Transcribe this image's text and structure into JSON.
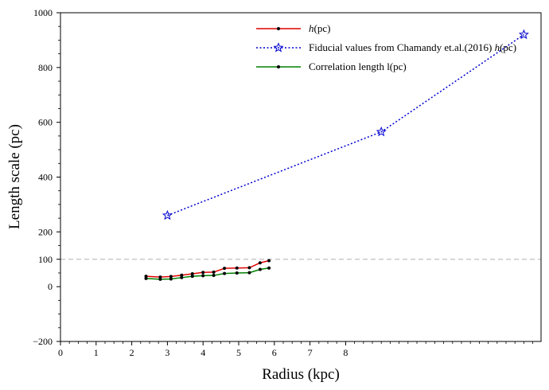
{
  "chart_data": {
    "type": "line",
    "xlabel": "Radius (kpc)",
    "ylabel": "Length scale (pc)",
    "xlim": [
      0,
      13.5
    ],
    "ylim": [
      -200,
      1000
    ],
    "x_ticks": [
      {
        "value": 0,
        "label": "0"
      },
      {
        "value": 1,
        "label": "1"
      },
      {
        "value": 2,
        "label": "2"
      },
      {
        "value": 3,
        "label": "3"
      },
      {
        "value": 4,
        "label": "4"
      },
      {
        "value": 5,
        "label": "5"
      },
      {
        "value": 6,
        "label": "6"
      },
      {
        "value": 7,
        "label": "7"
      },
      {
        "value": 8,
        "label": "8"
      }
    ],
    "y_ticks": [
      {
        "value": -200,
        "label": "−200"
      },
      {
        "value": 0,
        "label": "0"
      },
      {
        "value": 100,
        "label": "100"
      },
      {
        "value": 200,
        "label": "200"
      },
      {
        "value": 400,
        "label": "400"
      },
      {
        "value": 600,
        "label": "600"
      },
      {
        "value": 800,
        "label": "800"
      },
      {
        "value": 1000,
        "label": "1000"
      }
    ],
    "hline": {
      "y": 100,
      "color": "#c0c0c0",
      "style": "dashed"
    },
    "legend_position": "top-center",
    "series": [
      {
        "name": "h(pc)",
        "legend": {
          "prefix": "",
          "italic": "h",
          "suffix": "(pc)"
        },
        "color": "#e00000",
        "style": "solid",
        "marker": "dot",
        "x": [
          2.4,
          2.8,
          3.1,
          3.4,
          3.7,
          4.0,
          4.3,
          4.6,
          4.95,
          5.3,
          5.6,
          5.85
        ],
        "y": [
          38,
          35,
          37,
          42,
          47,
          52,
          53,
          67,
          68,
          69,
          87,
          95
        ]
      },
      {
        "name": "Fiducial values from Chamandy et.al.(2016) h(pc)",
        "legend": {
          "prefix": "Fiducial values from Chamandy et.al.(2016) ",
          "italic": "h",
          "suffix": "(pc)"
        },
        "color": "#0000d0",
        "style": "dotted",
        "marker": "star",
        "x": [
          3.0,
          9.0,
          13.0
        ],
        "y": [
          260,
          565,
          920
        ]
      },
      {
        "name": "Correlation length l(pc)",
        "legend": {
          "prefix": "Correlation length l(pc)",
          "italic": "",
          "suffix": ""
        },
        "color": "#008000",
        "style": "solid",
        "marker": "dot",
        "x": [
          2.4,
          2.8,
          3.1,
          3.4,
          3.7,
          4.0,
          4.3,
          4.6,
          4.95,
          5.3,
          5.6,
          5.85
        ],
        "y": [
          30,
          27,
          28,
          33,
          38,
          40,
          41,
          48,
          50,
          51,
          63,
          68
        ]
      }
    ]
  }
}
